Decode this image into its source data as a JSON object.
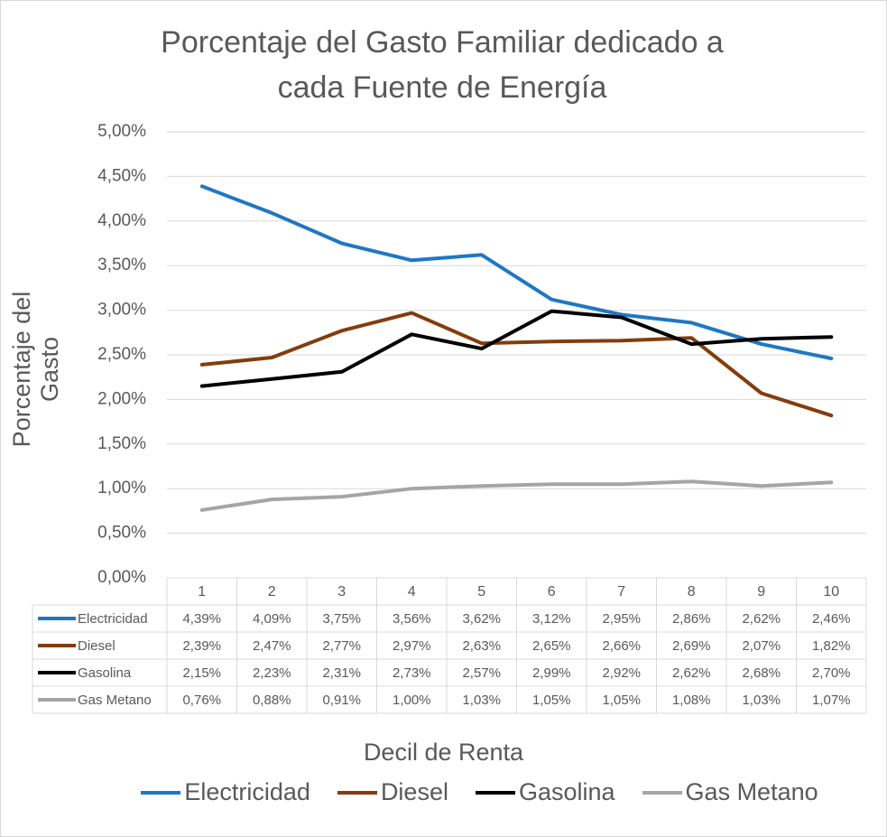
{
  "chart_data": {
    "type": "line",
    "title_line1": "Porcentaje del Gasto Familiar dedicado a",
    "title_line2": "cada Fuente de Energía",
    "xlabel": "Decil de Renta",
    "ylabel": "Porcentaje del Gasto",
    "ylim": [
      0,
      5
    ],
    "yticks": [
      "0,00%",
      "0,50%",
      "1,00%",
      "1,50%",
      "2,00%",
      "2,50%",
      "3,00%",
      "3,50%",
      "4,00%",
      "4,50%",
      "5,00%"
    ],
    "categories": [
      "1",
      "2",
      "3",
      "4",
      "5",
      "6",
      "7",
      "8",
      "9",
      "10"
    ],
    "grid": true,
    "legend_position": "bottom",
    "series": [
      {
        "name": "Electricidad",
        "color": "#1f77c4",
        "values": [
          4.39,
          4.09,
          3.75,
          3.56,
          3.62,
          3.12,
          2.95,
          2.86,
          2.62,
          2.46
        ],
        "labels": [
          "4,39%",
          "4,09%",
          "3,75%",
          "3,56%",
          "3,62%",
          "3,12%",
          "2,95%",
          "2,86%",
          "2,62%",
          "2,46%"
        ]
      },
      {
        "name": "Diesel",
        "color": "#843c0c",
        "values": [
          2.39,
          2.47,
          2.77,
          2.97,
          2.63,
          2.65,
          2.66,
          2.69,
          2.07,
          1.82
        ],
        "labels": [
          "2,39%",
          "2,47%",
          "2,77%",
          "2,97%",
          "2,63%",
          "2,65%",
          "2,66%",
          "2,69%",
          "2,07%",
          "1,82%"
        ]
      },
      {
        "name": "Gasolina",
        "color": "#000000",
        "values": [
          2.15,
          2.23,
          2.31,
          2.73,
          2.57,
          2.99,
          2.92,
          2.62,
          2.68,
          2.7
        ],
        "labels": [
          "2,15%",
          "2,23%",
          "2,31%",
          "2,73%",
          "2,57%",
          "2,99%",
          "2,92%",
          "2,62%",
          "2,68%",
          "2,70%"
        ]
      },
      {
        "name": "Gas Metano",
        "color": "#a5a5a5",
        "values": [
          0.76,
          0.88,
          0.91,
          1.0,
          1.03,
          1.05,
          1.05,
          1.08,
          1.03,
          1.07
        ],
        "labels": [
          "0,76%",
          "0,88%",
          "0,91%",
          "1,00%",
          "1,03%",
          "1,05%",
          "1,05%",
          "1,08%",
          "1,03%",
          "1,07%"
        ]
      }
    ]
  }
}
